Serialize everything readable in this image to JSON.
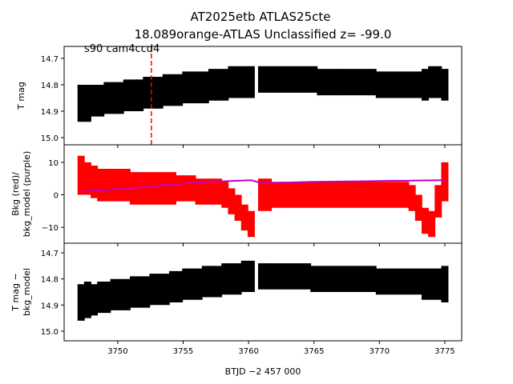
{
  "chart_data": [
    {
      "type": "errorbar",
      "title_lines": [
        "AT2025etb  ATLAS25cte",
        "18.089orange-ATLAS Unclassified z= -99.0"
      ],
      "annotation": "s90 cam4ccd4",
      "vline": {
        "x": 3752.57,
        "color": "#ff0000"
      },
      "ylabel_lines": [
        "T mag"
      ],
      "xlim": [
        3745.9,
        3776.29
      ],
      "ylim": [
        15.027,
        14.655
      ],
      "yticks": [
        14.7,
        14.8,
        14.9,
        {
          "value": 15,
          "label": "15.0"
        }
      ],
      "series": [
        {
          "name": "T mag",
          "color": "#000000",
          "x": [
            3747.2,
            3747.7,
            3748.2,
            3748.7,
            3749.2,
            3749.7,
            3750.2,
            3750.7,
            3751.2,
            3751.7,
            3752.2,
            3752.7,
            3753.2,
            3753.7,
            3754.2,
            3754.7,
            3755.2,
            3755.7,
            3756.2,
            3756.7,
            3757.2,
            3757.7,
            3758.2,
            3758.7,
            3759.2,
            3759.7,
            3760.2,
            3761.0,
            3761.5,
            3762.0,
            3762.5,
            3763.0,
            3763.5,
            3764.0,
            3764.5,
            3765.0,
            3765.5,
            3766.0,
            3766.5,
            3767.0,
            3767.5,
            3768.0,
            3768.5,
            3769.0,
            3769.5,
            3770.0,
            3770.5,
            3771.0,
            3771.5,
            3772.0,
            3772.5,
            3773.0,
            3773.5,
            3774.0,
            3774.5,
            3775.0
          ],
          "values": [
            14.87,
            14.87,
            14.86,
            14.86,
            14.85,
            14.85,
            14.85,
            14.84,
            14.84,
            14.84,
            14.83,
            14.83,
            14.83,
            14.82,
            14.82,
            14.82,
            14.81,
            14.81,
            14.81,
            14.81,
            14.8,
            14.8,
            14.8,
            14.79,
            14.79,
            14.79,
            14.79,
            14.78,
            14.78,
            14.78,
            14.78,
            14.78,
            14.78,
            14.78,
            14.78,
            14.78,
            14.79,
            14.79,
            14.79,
            14.79,
            14.79,
            14.79,
            14.79,
            14.79,
            14.79,
            14.8,
            14.8,
            14.8,
            14.8,
            14.8,
            14.8,
            14.8,
            14.8,
            14.79,
            14.79,
            14.8
          ],
          "errors": [
            0.07,
            0.07,
            0.06,
            0.06,
            0.06,
            0.06,
            0.06,
            0.06,
            0.06,
            0.06,
            0.06,
            0.06,
            0.06,
            0.06,
            0.06,
            0.06,
            0.06,
            0.06,
            0.06,
            0.06,
            0.06,
            0.06,
            0.06,
            0.06,
            0.06,
            0.06,
            0.06,
            0.05,
            0.05,
            0.05,
            0.05,
            0.05,
            0.05,
            0.05,
            0.05,
            0.05,
            0.05,
            0.05,
            0.05,
            0.05,
            0.05,
            0.05,
            0.05,
            0.05,
            0.05,
            0.05,
            0.05,
            0.05,
            0.05,
            0.05,
            0.05,
            0.05,
            0.06,
            0.06,
            0.06,
            0.06
          ]
        }
      ]
    },
    {
      "type": "scatter-model",
      "ylabel_lines": [
        "Bkg (red)/",
        "bkg_model (purple)"
      ],
      "xlim": [
        3745.9,
        3776.29
      ],
      "ylim": [
        -14.9,
        15.4
      ],
      "yticks": [
        {
          "value": -10,
          "label": "−10"
        },
        0,
        10
      ],
      "series": [
        {
          "name": "Bkg",
          "color": "#ff0000",
          "x": [
            3747.2,
            3747.7,
            3748.2,
            3748.7,
            3749.2,
            3749.7,
            3750.2,
            3750.7,
            3751.2,
            3751.7,
            3752.2,
            3752.7,
            3753.2,
            3753.7,
            3754.2,
            3754.7,
            3755.2,
            3755.7,
            3756.2,
            3756.7,
            3757.2,
            3757.7,
            3758.2,
            3758.7,
            3759.2,
            3759.7,
            3760.2,
            3761.0,
            3761.5,
            3762.0,
            3762.5,
            3763.0,
            3763.5,
            3764.0,
            3764.5,
            3765.0,
            3765.5,
            3766.0,
            3766.5,
            3767.0,
            3767.5,
            3768.0,
            3768.5,
            3769.0,
            3769.5,
            3770.0,
            3770.5,
            3771.0,
            3771.5,
            3772.0,
            3772.5,
            3773.0,
            3773.5,
            3774.0,
            3774.5,
            3775.0
          ],
          "values": [
            6,
            5,
            4,
            3,
            3,
            3,
            3,
            3,
            2,
            2,
            2,
            2,
            2,
            2,
            2,
            2,
            2,
            2,
            1,
            1,
            1,
            1,
            0,
            -2,
            -4,
            -7,
            -9,
            0,
            0,
            0,
            0,
            0,
            0,
            0,
            0,
            0,
            0,
            0,
            0,
            0,
            0,
            0,
            0,
            0,
            0,
            0,
            0,
            0,
            0,
            0,
            -1,
            -4,
            -8,
            -9,
            -2,
            4
          ],
          "errors": [
            6,
            5,
            5,
            5,
            5,
            5,
            5,
            5,
            5,
            5,
            5,
            5,
            5,
            5,
            5,
            4,
            4,
            4,
            4,
            4,
            4,
            4,
            4,
            4,
            4,
            4,
            4,
            5,
            5,
            4,
            4,
            4,
            4,
            4,
            4,
            4,
            4,
            4,
            4,
            4,
            4,
            4,
            4,
            4,
            4,
            4,
            4,
            4,
            4,
            4,
            4,
            4,
            4,
            4,
            5,
            6
          ]
        },
        {
          "name": "bkg_model",
          "color": "#c000c0",
          "x": [
            3747.2,
            3749.0,
            3751.0,
            3753.0,
            3755.0,
            3757.0,
            3759.0,
            3760.2,
            3761.0,
            3763.0,
            3765.0,
            3767.0,
            3769.0,
            3771.0,
            3773.0,
            3775.0
          ],
          "values": [
            1,
            1.5,
            2,
            2.8,
            3.5,
            4,
            4.3,
            4.5,
            3.6,
            3.8,
            4,
            4.1,
            4.2,
            4.3,
            4.4,
            4.5
          ]
        }
      ]
    },
    {
      "type": "errorbar",
      "ylabel_lines": [
        "T mag −",
        "bkg_model"
      ],
      "xlabel": "BTJD −2 457 000",
      "xlim": [
        3745.9,
        3776.29
      ],
      "ylim": [
        15.037,
        14.663
      ],
      "xticks": [
        3750,
        3755,
        3760,
        3765,
        3770,
        3775
      ],
      "yticks": [
        14.7,
        14.8,
        14.9,
        {
          "value": 15,
          "label": "15.0"
        }
      ],
      "series": [
        {
          "name": "T mag − bkg_model",
          "color": "#000000",
          "x": [
            3747.2,
            3747.7,
            3748.2,
            3748.7,
            3749.2,
            3749.7,
            3750.2,
            3750.7,
            3751.2,
            3751.7,
            3752.2,
            3752.7,
            3753.2,
            3753.7,
            3754.2,
            3754.7,
            3755.2,
            3755.7,
            3756.2,
            3756.7,
            3757.2,
            3757.7,
            3758.2,
            3758.7,
            3759.2,
            3759.7,
            3760.2,
            3761.0,
            3761.5,
            3762.0,
            3762.5,
            3763.0,
            3763.5,
            3764.0,
            3764.5,
            3765.0,
            3765.5,
            3766.0,
            3766.5,
            3767.0,
            3767.5,
            3768.0,
            3768.5,
            3769.0,
            3769.5,
            3770.0,
            3770.5,
            3771.0,
            3771.5,
            3772.0,
            3772.5,
            3773.0,
            3773.5,
            3774.0,
            3774.5,
            3775.0
          ],
          "values": [
            14.89,
            14.88,
            14.88,
            14.87,
            14.87,
            14.86,
            14.86,
            14.86,
            14.85,
            14.85,
            14.85,
            14.84,
            14.84,
            14.84,
            14.83,
            14.83,
            14.82,
            14.82,
            14.82,
            14.81,
            14.81,
            14.81,
            14.8,
            14.8,
            14.8,
            14.79,
            14.79,
            14.79,
            14.79,
            14.79,
            14.79,
            14.79,
            14.79,
            14.79,
            14.79,
            14.8,
            14.8,
            14.8,
            14.8,
            14.8,
            14.8,
            14.8,
            14.8,
            14.8,
            14.8,
            14.81,
            14.81,
            14.81,
            14.81,
            14.81,
            14.81,
            14.81,
            14.82,
            14.82,
            14.82,
            14.82
          ],
          "errors": [
            0.07,
            0.07,
            0.06,
            0.06,
            0.06,
            0.06,
            0.06,
            0.06,
            0.06,
            0.06,
            0.06,
            0.06,
            0.06,
            0.06,
            0.06,
            0.06,
            0.06,
            0.06,
            0.06,
            0.06,
            0.06,
            0.06,
            0.06,
            0.06,
            0.06,
            0.06,
            0.06,
            0.05,
            0.05,
            0.05,
            0.05,
            0.05,
            0.05,
            0.05,
            0.05,
            0.05,
            0.05,
            0.05,
            0.05,
            0.05,
            0.05,
            0.05,
            0.05,
            0.05,
            0.05,
            0.05,
            0.05,
            0.05,
            0.05,
            0.05,
            0.05,
            0.05,
            0.06,
            0.06,
            0.06,
            0.07
          ]
        }
      ]
    }
  ]
}
